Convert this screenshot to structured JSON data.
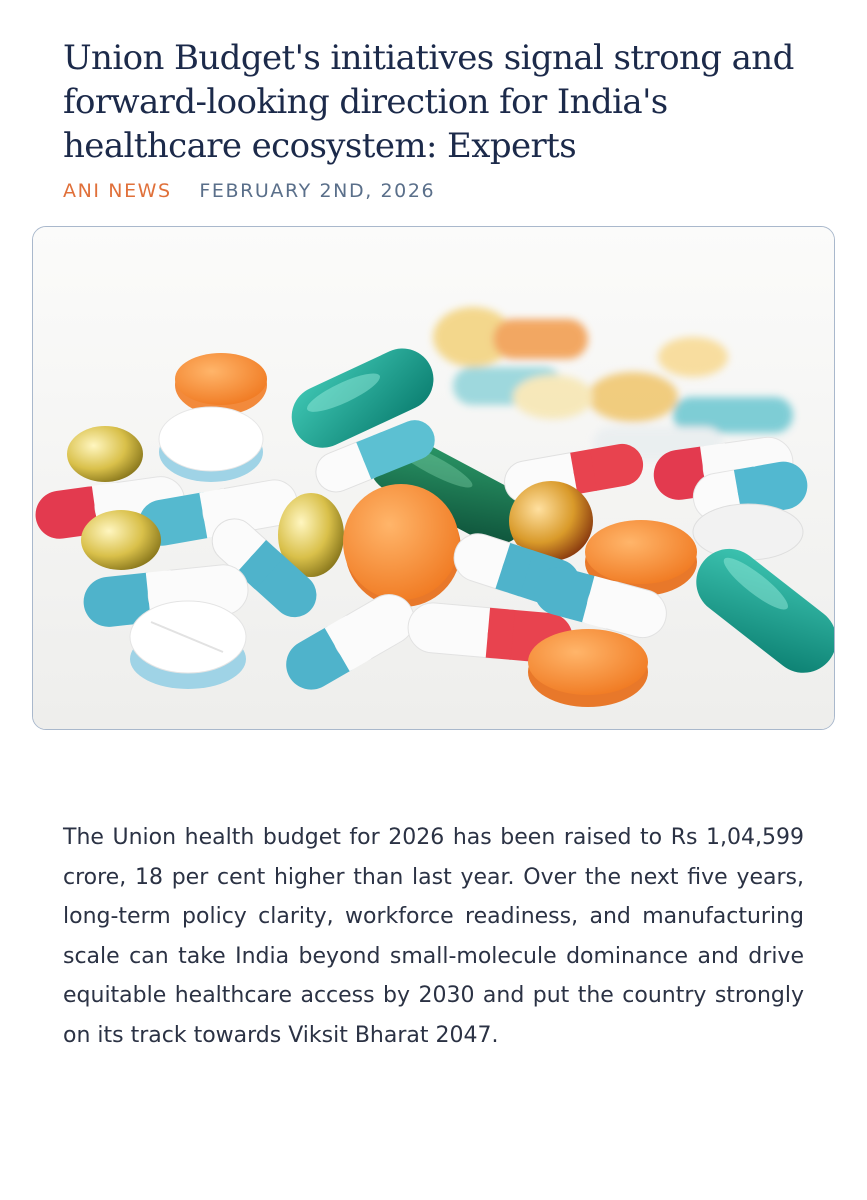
{
  "article": {
    "headline": "Union Budget's initiatives signal strong and forward-looking direction for India's healthcare ecosystem: Experts",
    "source": "ANI NEWS",
    "date": "FEBRUARY 2ND, 2026",
    "body": "The Union health budget for 2026 has been raised to Rs 1,04,599 crore, 18 per cent higher than last year. Over the next five years, long-term policy clarity, workforce readiness, and manufacturing scale can take India beyond small-molecule dominance and drive equitable healthcare access by 2030 and put the country strongly on its track towards Viksit Bharat 2047."
  },
  "colors": {
    "headline": "#1c2a4a",
    "source": "#e0703a",
    "date": "#5a6f8a",
    "body_text": "#2b3244",
    "figure_border": "#a9b8cc"
  }
}
